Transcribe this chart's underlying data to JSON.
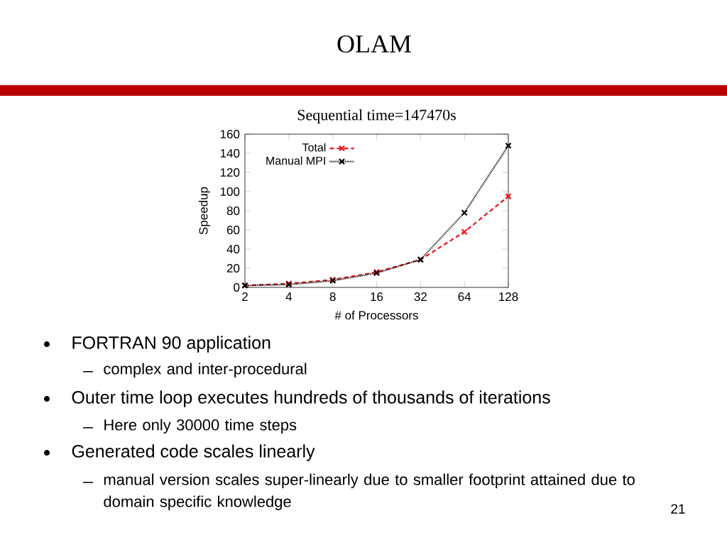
{
  "chart_data": {
    "type": "line",
    "title": "Sequential time=147470s",
    "xlabel": "# of Processors",
    "ylabel": "Speedup",
    "x": [
      2,
      4,
      8,
      16,
      32,
      64,
      128
    ],
    "series": [
      {
        "name": "Total",
        "color": "#e8141b",
        "line_style": "dashed",
        "marker": "cross",
        "values": [
          2,
          4,
          8,
          16,
          29,
          58,
          95
        ]
      },
      {
        "name": "Manual MPI",
        "color": "#000000",
        "line_style": "dotted",
        "marker": "cross",
        "values": [
          2,
          3,
          7,
          15,
          29,
          78,
          148
        ]
      }
    ],
    "log": "x",
    "xlim": [
      2,
      128
    ],
    "xticks": [
      2,
      4,
      8,
      16,
      32,
      64,
      128
    ],
    "ylim": [
      0,
      160
    ],
    "yticks": [
      0,
      20,
      40,
      60,
      80,
      100,
      120,
      140,
      160
    ],
    "grid": false,
    "legend": "top left",
    "annotations": [
      "OLAM",
      "FORTRAN 90 application",
      "complex and inter-procedural",
      "Outer time loop executes hundreds of thousands of iterations",
      "Here only 30000 time steps",
      "Generated code scales linearly",
      "manual version scales super-linearly due to smaller footprint attained due to domain specific knowledge",
      "21"
    ]
  }
}
